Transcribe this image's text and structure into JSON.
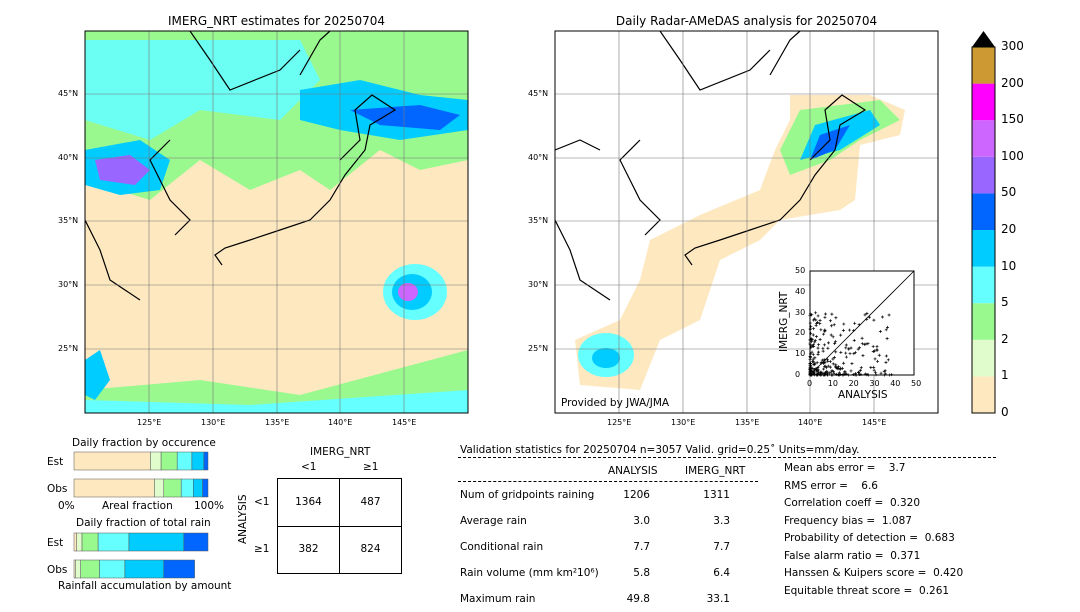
{
  "left_map": {
    "title": "IMERG_NRT estimates for 20250704"
  },
  "right_map": {
    "title": "Daily Radar-AMeDAS analysis for 20250704",
    "credit": "Provided by JWA/JMA"
  },
  "lat_labels": [
    "45°N",
    "40°N",
    "35°N",
    "30°N",
    "25°N"
  ],
  "lon_labels": [
    "125°E",
    "130°E",
    "135°E",
    "140°E",
    "145°E"
  ],
  "colorbar": {
    "labels": [
      "0",
      "1",
      "2",
      "5",
      "10",
      "20",
      "50",
      "100",
      "150",
      "200",
      "300"
    ],
    "colors": [
      "#fee8c0",
      "#e0fccc",
      "#99f98f",
      "#66ffff",
      "#00ccff",
      "#0066ff",
      "#9966ff",
      "#cc66ff",
      "#ff00ff",
      "#cc9933"
    ],
    "extend_color": "#000000"
  },
  "occurrence": {
    "title": "Daily fraction by occurence",
    "row_labels": [
      "Est",
      "Obs"
    ],
    "xmin": "0%",
    "xlabel": "Areal fraction",
    "xmax": "100%",
    "est": [
      0.57,
      0.08,
      0.12,
      0.11,
      0.09,
      0.03
    ],
    "obs": [
      0.6,
      0.07,
      0.13,
      0.09,
      0.07,
      0.04
    ]
  },
  "total_rain": {
    "title": "Daily fraction of total rain",
    "row_labels": [
      "Est",
      "Obs"
    ],
    "xlabel": "Rainfall accumulation by amount",
    "est": [
      0.02,
      0.04,
      0.12,
      0.23,
      0.41,
      0.18
    ],
    "obs": [
      0.01,
      0.04,
      0.14,
      0.19,
      0.29,
      0.23
    ]
  },
  "contingency": {
    "col_title": "IMERG_NRT",
    "row_title": "ANALYSIS",
    "col_labels": [
      "<1",
      "≥1"
    ],
    "row_labels": [
      "<1",
      "≥1"
    ],
    "cells": [
      [
        "1364",
        "487"
      ],
      [
        "382",
        "824"
      ]
    ]
  },
  "stats": {
    "header": "Validation statistics for 20250704  n=3057 Valid. grid=0.25˚ Units=mm/day.",
    "col_headers": [
      "ANALYSIS",
      "IMERG_NRT"
    ],
    "rows": [
      {
        "label": "Num of gridpoints raining",
        "a": "1206",
        "b": "1311"
      },
      {
        "label": "Average rain",
        "a": "3.0",
        "b": "3.3"
      },
      {
        "label": "Conditional rain",
        "a": "7.7",
        "b": "7.7"
      },
      {
        "label": "Rain volume (mm km²10⁶)",
        "a": "5.8",
        "b": "6.4"
      },
      {
        "label": "Maximum rain",
        "a": "49.8",
        "b": "33.1"
      }
    ],
    "scores": [
      "Mean abs error =    3.7",
      "RMS error =    6.6",
      "Correlation coeff =  0.320",
      "Frequency bias =  1.087",
      "Probability of detection =  0.683",
      "False alarm ratio =  0.371",
      "Hanssen & Kuipers score =  0.420",
      "Equitable threat score =  0.261"
    ]
  },
  "chart_data": {
    "type": "scatter",
    "title": "",
    "xlabel": "ANALYSIS",
    "ylabel": "IMERG_NRT",
    "xlim": [
      0,
      50
    ],
    "ylim": [
      0,
      50
    ],
    "ticks": [
      "0",
      "10",
      "20",
      "30",
      "40",
      "50"
    ]
  }
}
